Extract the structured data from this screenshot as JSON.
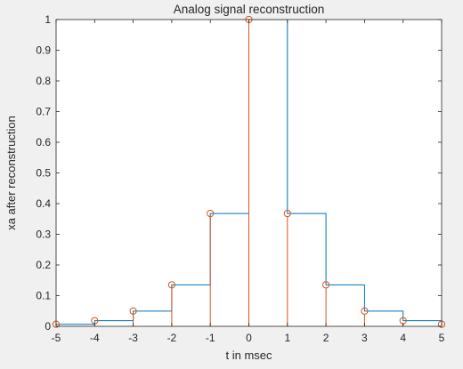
{
  "chart_data": {
    "type": "line",
    "title": "Analog signal reconstruction",
    "xlabel": "t in msec",
    "ylabel": "xa after reconstruction",
    "xlim": [
      -5,
      5
    ],
    "ylim": [
      0,
      1
    ],
    "xticks": [
      -5,
      -4,
      -3,
      -2,
      -1,
      0,
      1,
      2,
      3,
      4,
      5
    ],
    "yticks": [
      0,
      0.1,
      0.2,
      0.3,
      0.4,
      0.5,
      0.6,
      0.7,
      0.8,
      0.9,
      1
    ],
    "grid": false,
    "series": [
      {
        "style": "stairs",
        "color": "#0072BD",
        "x": [
          -5,
          -4,
          -3,
          -2,
          -1,
          0,
          1,
          2,
          3,
          4,
          5
        ],
        "y": [
          0.0067,
          0.0183,
          0.0498,
          0.1353,
          0.3679,
          1.0,
          0.3679,
          0.1353,
          0.0498,
          0.0183,
          0.0067
        ]
      },
      {
        "style": "stem",
        "color": "#D95319",
        "marker": "circle",
        "x": [
          -5,
          -4,
          -3,
          -2,
          -1,
          0,
          1,
          2,
          3,
          4,
          5
        ],
        "y": [
          0.0067,
          0.0183,
          0.0498,
          0.1353,
          0.3679,
          1.0,
          0.3679,
          0.1353,
          0.0498,
          0.0183,
          0.0067
        ]
      }
    ]
  }
}
